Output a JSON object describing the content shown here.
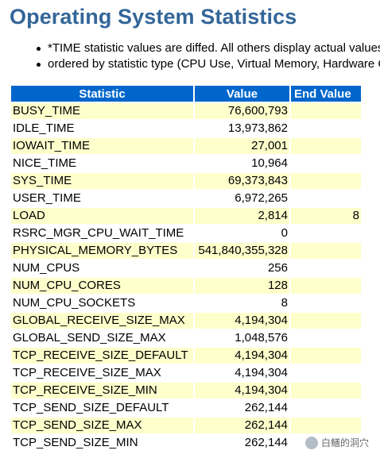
{
  "header": {
    "title": "Operating System Statistics"
  },
  "notes": [
    "*TIME statistic values are diffed. All others display actual values",
    "ordered by statistic type (CPU Use, Virtual Memory, Hardware Config"
  ],
  "table": {
    "columns": [
      "Statistic",
      "Value",
      "End Value"
    ],
    "rows": [
      {
        "statistic": "BUSY_TIME",
        "value": "76,600,793",
        "end_value": ""
      },
      {
        "statistic": "IDLE_TIME",
        "value": "13,973,862",
        "end_value": ""
      },
      {
        "statistic": "IOWAIT_TIME",
        "value": "27,001",
        "end_value": ""
      },
      {
        "statistic": "NICE_TIME",
        "value": "10,964",
        "end_value": ""
      },
      {
        "statistic": "SYS_TIME",
        "value": "69,373,843",
        "end_value": ""
      },
      {
        "statistic": "USER_TIME",
        "value": "6,972,265",
        "end_value": ""
      },
      {
        "statistic": "LOAD",
        "value": "2,814",
        "end_value": "8"
      },
      {
        "statistic": "RSRC_MGR_CPU_WAIT_TIME",
        "value": "0",
        "end_value": ""
      },
      {
        "statistic": "PHYSICAL_MEMORY_BYTES",
        "value": "541,840,355,328",
        "end_value": ""
      },
      {
        "statistic": "NUM_CPUS",
        "value": "256",
        "end_value": ""
      },
      {
        "statistic": "NUM_CPU_CORES",
        "value": "128",
        "end_value": ""
      },
      {
        "statistic": "NUM_CPU_SOCKETS",
        "value": "8",
        "end_value": ""
      },
      {
        "statistic": "GLOBAL_RECEIVE_SIZE_MAX",
        "value": "4,194,304",
        "end_value": ""
      },
      {
        "statistic": "GLOBAL_SEND_SIZE_MAX",
        "value": "1,048,576",
        "end_value": ""
      },
      {
        "statistic": "TCP_RECEIVE_SIZE_DEFAULT",
        "value": "4,194,304",
        "end_value": ""
      },
      {
        "statistic": "TCP_RECEIVE_SIZE_MAX",
        "value": "4,194,304",
        "end_value": ""
      },
      {
        "statistic": "TCP_RECEIVE_SIZE_MIN",
        "value": "4,194,304",
        "end_value": ""
      },
      {
        "statistic": "TCP_SEND_SIZE_DEFAULT",
        "value": "262,144",
        "end_value": ""
      },
      {
        "statistic": "TCP_SEND_SIZE_MAX",
        "value": "262,144",
        "end_value": ""
      },
      {
        "statistic": "TCP_SEND_SIZE_MIN",
        "value": "262,144",
        "end_value": ""
      }
    ]
  },
  "watermark": {
    "text": "白鳝的洞穴",
    "icon": "wechat-channel-icon"
  },
  "colors": {
    "title": "#336699",
    "header_bg": "#0066cc",
    "row_highlight": "#ffffcc"
  }
}
